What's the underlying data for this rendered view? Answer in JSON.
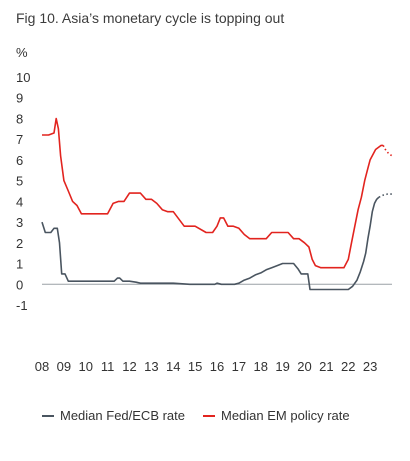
{
  "title": "Fig 10. Asia’s monetary cycle is topping out",
  "chart_data": {
    "type": "line",
    "title": "Fig 10. Asia’s monetary cycle is topping out",
    "ylabel": "%",
    "xlabel": "",
    "ylim": [
      -1,
      10
    ],
    "yticks": [
      "-1",
      "0",
      "1",
      "2",
      "3",
      "4",
      "5",
      "6",
      "7",
      "8",
      "9",
      "10"
    ],
    "xticks": [
      "08",
      "09",
      "10",
      "11",
      "12",
      "13",
      "14",
      "15",
      "16",
      "17",
      "18",
      "19",
      "20",
      "21",
      "22",
      "23"
    ],
    "xlim": [
      2008,
      2024
    ],
    "grid": false,
    "legend_position": "bottom",
    "series": [
      {
        "name": "Median Fed/ECB rate",
        "color": "#4a5560",
        "x": [
          2008.0,
          2008.15,
          2008.4,
          2008.55,
          2008.7,
          2008.8,
          2008.9,
          2009.05,
          2009.2,
          2009.3,
          2010.0,
          2011.0,
          2011.3,
          2011.45,
          2011.55,
          2011.7,
          2011.85,
          2012.0,
          2012.3,
          2012.5,
          2013.0,
          2014.0,
          2014.75,
          2015.0,
          2015.5,
          2015.9,
          2016.0,
          2016.2,
          2016.5,
          2016.8,
          2017.0,
          2017.25,
          2017.5,
          2017.75,
          2018.0,
          2018.25,
          2018.5,
          2018.75,
          2019.0,
          2019.25,
          2019.5,
          2019.7,
          2019.85,
          2020.0,
          2020.15,
          2020.25,
          2021.0,
          2021.5,
          2021.9,
          2022.0,
          2022.2,
          2022.4,
          2022.55,
          2022.7,
          2022.8,
          2022.9,
          2023.0,
          2023.1,
          2023.2,
          2023.3,
          2023.4
        ],
        "y": [
          3.0,
          2.5,
          2.5,
          2.7,
          2.7,
          2.0,
          0.5,
          0.5,
          0.15,
          0.15,
          0.15,
          0.15,
          0.15,
          0.3,
          0.3,
          0.15,
          0.15,
          0.15,
          0.1,
          0.05,
          0.05,
          0.05,
          0.0,
          0.0,
          0.0,
          0.0,
          0.05,
          0.0,
          0.0,
          0.0,
          0.05,
          0.2,
          0.3,
          0.45,
          0.55,
          0.7,
          0.8,
          0.9,
          1.0,
          1.0,
          1.0,
          0.75,
          0.5,
          0.5,
          0.5,
          -0.25,
          -0.25,
          -0.25,
          -0.25,
          -0.25,
          -0.1,
          0.2,
          0.6,
          1.1,
          1.5,
          2.2,
          2.8,
          3.5,
          3.9,
          4.1,
          4.2
        ]
      },
      {
        "name": "Median EM policy rate",
        "color": "#e2241f",
        "x": [
          2008.0,
          2008.3,
          2008.55,
          2008.65,
          2008.75,
          2008.85,
          2009.0,
          2009.2,
          2009.4,
          2009.6,
          2009.8,
          2010.0,
          2010.5,
          2011.0,
          2011.25,
          2011.5,
          2011.75,
          2012.0,
          2012.25,
          2012.5,
          2012.75,
          2013.0,
          2013.25,
          2013.5,
          2013.75,
          2014.0,
          2014.5,
          2014.7,
          2014.85,
          2015.0,
          2015.5,
          2015.8,
          2016.0,
          2016.15,
          2016.3,
          2016.5,
          2016.75,
          2017.0,
          2017.25,
          2017.5,
          2018.0,
          2018.25,
          2018.5,
          2019.0,
          2019.25,
          2019.5,
          2019.75,
          2020.0,
          2020.2,
          2020.35,
          2020.5,
          2020.75,
          2021.0,
          2021.5,
          2021.8,
          2022.0,
          2022.15,
          2022.3,
          2022.45,
          2022.6,
          2022.75,
          2022.9,
          2023.0,
          2023.25,
          2023.5,
          2023.6
        ],
        "y": [
          7.2,
          7.2,
          7.3,
          8.0,
          7.5,
          6.2,
          5.0,
          4.5,
          4.0,
          3.8,
          3.4,
          3.4,
          3.4,
          3.4,
          3.9,
          4.0,
          4.0,
          4.4,
          4.4,
          4.4,
          4.1,
          4.1,
          3.9,
          3.6,
          3.5,
          3.5,
          2.8,
          2.8,
          2.8,
          2.8,
          2.5,
          2.5,
          2.8,
          3.2,
          3.2,
          2.8,
          2.8,
          2.7,
          2.4,
          2.2,
          2.2,
          2.2,
          2.5,
          2.5,
          2.5,
          2.2,
          2.2,
          2.0,
          1.8,
          1.2,
          0.9,
          0.8,
          0.8,
          0.8,
          0.8,
          1.2,
          2.0,
          2.8,
          3.6,
          4.2,
          5.0,
          5.6,
          6.0,
          6.5,
          6.7,
          6.7
        ]
      }
    ],
    "projection": [
      {
        "name": "Median Fed/ECB rate",
        "x": [
          2023.4,
          2023.6,
          2023.8,
          2024.0
        ],
        "y": [
          4.2,
          4.3,
          4.35,
          4.35
        ]
      },
      {
        "name": "Median EM policy rate",
        "x": [
          2023.6,
          2023.7,
          2023.85,
          2024.0
        ],
        "y": [
          6.7,
          6.5,
          6.3,
          6.2
        ]
      }
    ]
  }
}
